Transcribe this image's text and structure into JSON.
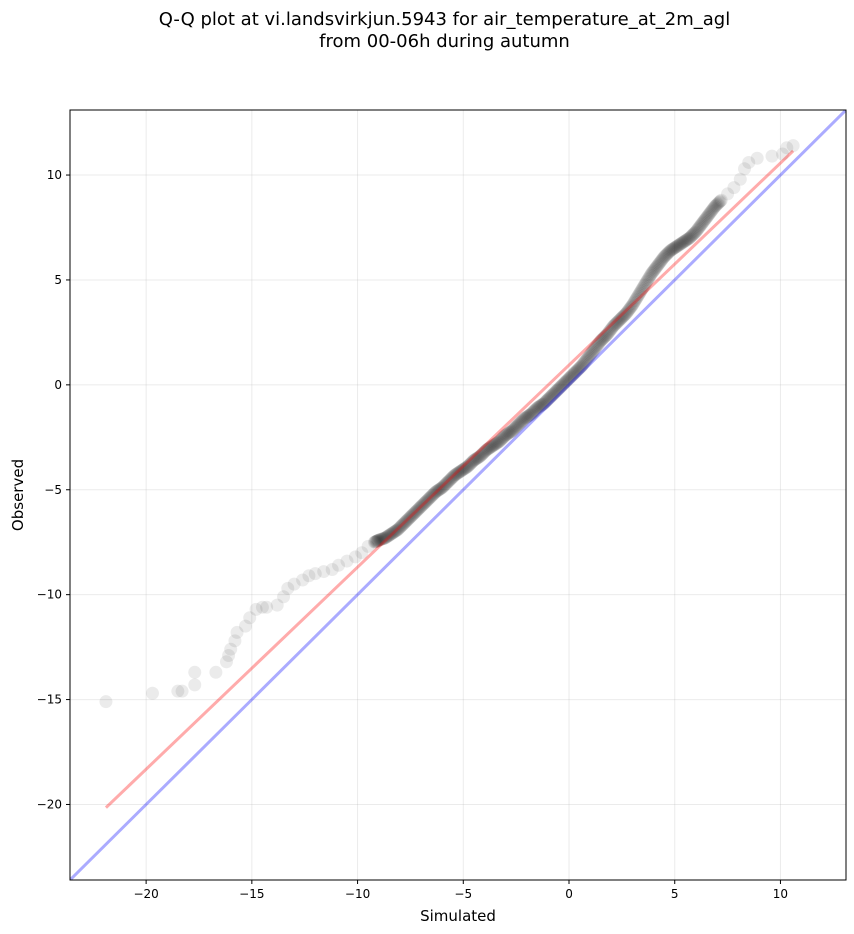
{
  "chart_data": {
    "type": "scatter",
    "title": [
      "Q-Q plot at vi.landsvirkjun.5943 for air_temperature_at_2m_agl",
      "from 00-06h during autumn"
    ],
    "xlabel": "Simulated",
    "ylabel": "Observed",
    "xlim": [
      -23.6,
      13.1
    ],
    "ylim": [
      -23.6,
      13.1
    ],
    "xticks": [
      -20,
      -15,
      -10,
      -5,
      0,
      5,
      10
    ],
    "yticks": [
      -20,
      -15,
      -10,
      -5,
      0,
      5,
      10
    ],
    "grid": true,
    "series": [
      {
        "kind": "quantile-points",
        "color": "#000000",
        "opacity": 0.08,
        "points": [
          [
            -21.9,
            -15.1
          ],
          [
            -19.7,
            -14.7
          ],
          [
            -18.5,
            -14.6
          ],
          [
            -18.3,
            -14.6
          ],
          [
            -17.7,
            -14.3
          ],
          [
            -17.7,
            -13.7
          ],
          [
            -16.7,
            -13.7
          ],
          [
            -16.2,
            -13.2
          ],
          [
            -16.1,
            -12.9
          ],
          [
            -16.0,
            -12.6
          ],
          [
            -15.8,
            -12.2
          ],
          [
            -15.7,
            -11.8
          ],
          [
            -15.3,
            -11.5
          ],
          [
            -15.1,
            -11.1
          ],
          [
            -14.8,
            -10.7
          ],
          [
            -14.5,
            -10.6
          ],
          [
            -14.3,
            -10.6
          ],
          [
            -13.8,
            -10.5
          ],
          [
            -13.5,
            -10.1
          ],
          [
            -13.3,
            -9.7
          ],
          [
            -13.0,
            -9.5
          ],
          [
            -12.6,
            -9.3
          ],
          [
            -12.3,
            -9.1
          ],
          [
            -12.0,
            -9.0
          ],
          [
            -11.6,
            -8.9
          ],
          [
            -11.2,
            -8.8
          ],
          [
            -10.9,
            -8.6
          ],
          [
            -10.5,
            -8.4
          ],
          [
            -10.1,
            -8.2
          ],
          [
            -9.8,
            -8.0
          ],
          [
            -9.5,
            -7.7
          ],
          [
            -9.2,
            -7.5
          ],
          [
            -9.0,
            -7.4
          ],
          [
            -8.7,
            -7.3
          ],
          [
            -8.4,
            -7.1
          ],
          [
            -8.1,
            -6.9
          ],
          [
            -7.8,
            -6.6
          ],
          [
            -7.5,
            -6.3
          ],
          [
            -7.2,
            -6.0
          ],
          [
            -6.9,
            -5.7
          ],
          [
            -6.6,
            -5.4
          ],
          [
            -6.3,
            -5.1
          ],
          [
            -6.0,
            -4.9
          ],
          [
            -5.7,
            -4.6
          ],
          [
            -5.4,
            -4.3
          ],
          [
            -5.1,
            -4.1
          ],
          [
            -4.8,
            -3.9
          ],
          [
            -4.5,
            -3.6
          ],
          [
            -4.2,
            -3.4
          ],
          [
            -3.9,
            -3.1
          ],
          [
            -3.6,
            -2.9
          ],
          [
            -3.3,
            -2.7
          ],
          [
            -3.0,
            -2.4
          ],
          [
            -2.7,
            -2.2
          ],
          [
            -2.4,
            -1.9
          ],
          [
            -2.1,
            -1.6
          ],
          [
            -1.8,
            -1.4
          ],
          [
            -1.5,
            -1.1
          ],
          [
            -1.2,
            -0.9
          ],
          [
            -0.9,
            -0.6
          ],
          [
            -0.6,
            -0.3
          ],
          [
            -0.3,
            0.0
          ],
          [
            0.0,
            0.3
          ],
          [
            0.3,
            0.6
          ],
          [
            0.6,
            0.9
          ],
          [
            0.9,
            1.3
          ],
          [
            1.2,
            1.7
          ],
          [
            1.5,
            2.1
          ],
          [
            1.8,
            2.4
          ],
          [
            2.1,
            2.8
          ],
          [
            2.4,
            3.1
          ],
          [
            2.7,
            3.4
          ],
          [
            3.0,
            3.8
          ],
          [
            3.3,
            4.3
          ],
          [
            3.6,
            4.8
          ],
          [
            3.9,
            5.3
          ],
          [
            4.2,
            5.7
          ],
          [
            4.5,
            6.1
          ],
          [
            4.8,
            6.4
          ],
          [
            5.1,
            6.6
          ],
          [
            5.4,
            6.8
          ],
          [
            5.7,
            7.0
          ],
          [
            6.0,
            7.3
          ],
          [
            6.3,
            7.7
          ],
          [
            6.6,
            8.1
          ],
          [
            6.9,
            8.5
          ],
          [
            7.2,
            8.8
          ],
          [
            7.5,
            9.1
          ],
          [
            7.8,
            9.4
          ],
          [
            8.1,
            9.8
          ],
          [
            8.3,
            10.3
          ],
          [
            8.5,
            10.6
          ],
          [
            8.9,
            10.8
          ],
          [
            9.6,
            10.9
          ],
          [
            10.1,
            11.0
          ],
          [
            10.3,
            11.3
          ],
          [
            10.6,
            11.4
          ]
        ]
      },
      {
        "kind": "fit-line",
        "color": "#ff0000",
        "opacity": 0.33,
        "x": [
          -21.9,
          10.6
        ],
        "y": [
          -20.15,
          11.15
        ]
      },
      {
        "kind": "identity-line",
        "color": "#0000ff",
        "opacity": 0.33,
        "x": [
          -23.6,
          13.1
        ],
        "y": [
          -23.6,
          13.1
        ]
      }
    ]
  }
}
